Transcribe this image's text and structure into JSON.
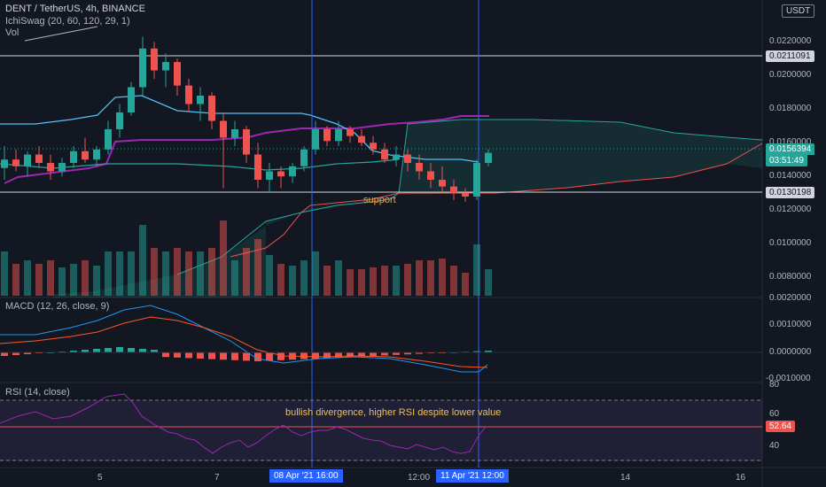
{
  "header": {
    "title": "DENT / TetherUS, 4h, BINANCE",
    "indicator1": "IchiSwag (20, 60, 120, 29, 1)",
    "indicator2": "Vol"
  },
  "currency": "USDT",
  "price_axis": [
    "0.0220000",
    "0.0200000",
    "0.0180000",
    "0.0160000",
    "0.0140000",
    "0.0120000",
    "0.0100000",
    "0.0080000"
  ],
  "price_tags": {
    "resistance": "0.0211091",
    "current": "0.0156394",
    "countdown": "03:51:49",
    "support_level": "0.0130198"
  },
  "annotations": {
    "support": "support",
    "divergence": "bullish divergence, higher RSI despite lower value"
  },
  "macd": {
    "title": "MACD (12, 26, close, 9)",
    "axis": [
      "0.0020000",
      "0.0010000",
      "0.0000000",
      "-0.0010000"
    ]
  },
  "rsi": {
    "title": "RSI (14, close)",
    "axis": [
      "80",
      "60",
      "40"
    ],
    "value": "52.64"
  },
  "time_axis": {
    "ticks": [
      "5",
      "7",
      "12:00",
      "14",
      "16"
    ],
    "highlight1": "08 Apr '21   16:00",
    "highlight2": "11 Apr '21   12:00"
  },
  "colors": {
    "up": "#26a69a",
    "down": "#ef5350",
    "background": "#131722",
    "accent": "#2962ff",
    "purple": "#9c27b0"
  },
  "chart_data": {
    "type": "candlestick",
    "candles": [
      [
        0.0147,
        0.016,
        0.014,
        0.0152
      ],
      [
        0.0152,
        0.0158,
        0.0145,
        0.0148
      ],
      [
        0.0148,
        0.0157,
        0.0142,
        0.0155
      ],
      [
        0.0155,
        0.016,
        0.0147,
        0.015
      ],
      [
        0.015,
        0.0155,
        0.014,
        0.0145
      ],
      [
        0.0145,
        0.0153,
        0.0142,
        0.015
      ],
      [
        0.015,
        0.016,
        0.0147,
        0.0157
      ],
      [
        0.0157,
        0.0165,
        0.015,
        0.0152
      ],
      [
        0.0152,
        0.016,
        0.0148,
        0.0158
      ],
      [
        0.0158,
        0.0175,
        0.0155,
        0.017
      ],
      [
        0.017,
        0.0185,
        0.0165,
        0.018
      ],
      [
        0.018,
        0.0198,
        0.0178,
        0.0195
      ],
      [
        0.0195,
        0.0225,
        0.019,
        0.0218
      ],
      [
        0.0218,
        0.0222,
        0.02,
        0.0205
      ],
      [
        0.0205,
        0.0215,
        0.0195,
        0.021
      ],
      [
        0.021,
        0.0212,
        0.019,
        0.0196
      ],
      [
        0.0196,
        0.02,
        0.018,
        0.0185
      ],
      [
        0.0185,
        0.0195,
        0.0175,
        0.019
      ],
      [
        0.019,
        0.0192,
        0.017,
        0.0175
      ],
      [
        0.0175,
        0.018,
        0.0135,
        0.0165
      ],
      [
        0.0165,
        0.0175,
        0.016,
        0.017
      ],
      [
        0.017,
        0.0172,
        0.015,
        0.0155
      ],
      [
        0.0155,
        0.0162,
        0.0135,
        0.014
      ],
      [
        0.014,
        0.015,
        0.0132,
        0.0145
      ],
      [
        0.0145,
        0.0148,
        0.0135,
        0.0142
      ],
      [
        0.0142,
        0.015,
        0.0138,
        0.0148
      ],
      [
        0.0148,
        0.016,
        0.0145,
        0.0158
      ],
      [
        0.0158,
        0.0175,
        0.0155,
        0.017
      ],
      [
        0.017,
        0.0172,
        0.016,
        0.0163
      ],
      [
        0.0163,
        0.0175,
        0.016,
        0.017
      ],
      [
        0.017,
        0.0172,
        0.0162,
        0.0166
      ],
      [
        0.0166,
        0.017,
        0.016,
        0.0162
      ],
      [
        0.0162,
        0.0166,
        0.0155,
        0.0158
      ],
      [
        0.0158,
        0.0162,
        0.015,
        0.0152
      ],
      [
        0.0152,
        0.016,
        0.0148,
        0.0155
      ],
      [
        0.0155,
        0.0158,
        0.0145,
        0.015
      ],
      [
        0.015,
        0.0155,
        0.014,
        0.0145
      ],
      [
        0.0145,
        0.015,
        0.0135,
        0.014
      ],
      [
        0.014,
        0.0148,
        0.0132,
        0.0136
      ],
      [
        0.0136,
        0.014,
        0.0128,
        0.0132
      ],
      [
        0.0132,
        0.0135,
        0.0127,
        0.013
      ],
      [
        0.013,
        0.0152,
        0.0128,
        0.015
      ],
      [
        0.015,
        0.0158,
        0.0148,
        0.0156
      ]
    ]
  }
}
